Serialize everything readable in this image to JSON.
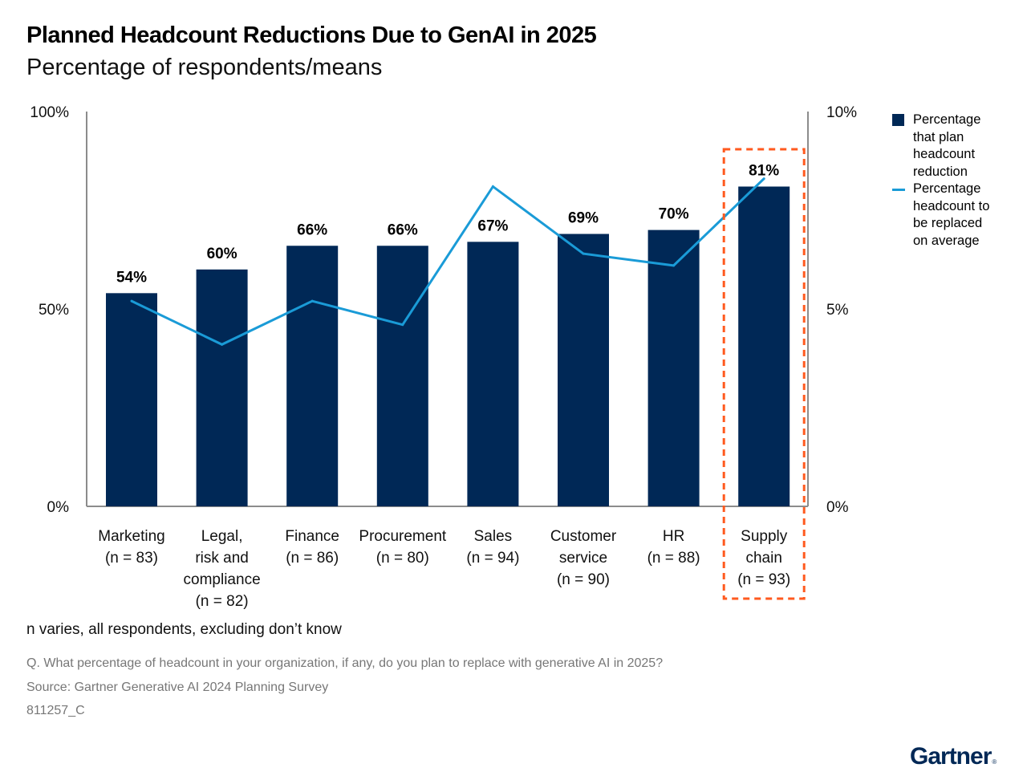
{
  "header": {
    "title": "Planned Headcount Reductions Due to GenAI in 2025",
    "subtitle": "Percentage of respondents/means"
  },
  "chart_data": {
    "type": "bar",
    "title": "Planned Headcount Reductions Due to GenAI in 2025",
    "subtitle": "Percentage of respondents/means",
    "categories": [
      [
        "Marketing",
        "(n = 83)"
      ],
      [
        "Legal,",
        "risk and",
        "compliance",
        "(n = 82)"
      ],
      [
        "Finance",
        "(n = 86)"
      ],
      [
        "Procurement",
        "(n = 80)"
      ],
      [
        "Sales",
        "(n = 94)"
      ],
      [
        "Customer",
        "service",
        "(n = 90)"
      ],
      [
        "HR",
        "(n = 88)"
      ],
      [
        "Supply",
        "chain",
        "(n = 93)"
      ]
    ],
    "series": [
      {
        "name": "Percentage that plan headcount reduction",
        "type": "bar",
        "axis": "left",
        "color": "#002856",
        "values": [
          54,
          60,
          66,
          66,
          67,
          69,
          70,
          81
        ],
        "labels": [
          "54%",
          "60%",
          "66%",
          "66%",
          "67%",
          "69%",
          "70%",
          "81%"
        ]
      },
      {
        "name": "Percentage headcount to be replaced on average",
        "type": "line",
        "axis": "right",
        "color": "#1a9bd7",
        "values": [
          5.2,
          4.1,
          5.2,
          4.6,
          8.1,
          6.4,
          6.1,
          8.3
        ]
      }
    ],
    "left_axis": {
      "ylim": [
        0,
        100
      ],
      "ticks": [
        "0%",
        "50%",
        "100%"
      ],
      "tick_values": [
        0,
        50,
        100
      ]
    },
    "right_axis": {
      "ylim": [
        0,
        10
      ],
      "ticks": [
        "0%",
        "5%",
        "10%"
      ],
      "tick_values": [
        0,
        5,
        10
      ]
    },
    "highlight": {
      "category_index": 7,
      "style": "dashed-box",
      "color": "#ff5a1f"
    },
    "legend": {
      "placement": "right",
      "entries": [
        [
          "Percentage",
          "that plan",
          "headcount",
          "reduction"
        ],
        [
          "Percentage",
          "headcount to",
          "be replaced",
          "on average"
        ]
      ]
    },
    "grid": false
  },
  "footer": {
    "note": "n varies, all respondents, excluding don’t know",
    "question": "Q. What percentage of headcount in your organization, if any, do you plan to replace with generative AI in 2025?",
    "source": "Source: Gartner Generative AI 2024 Planning Survey",
    "code": "811257_C"
  },
  "logo": {
    "text": "Gartner",
    "mark": "®"
  }
}
